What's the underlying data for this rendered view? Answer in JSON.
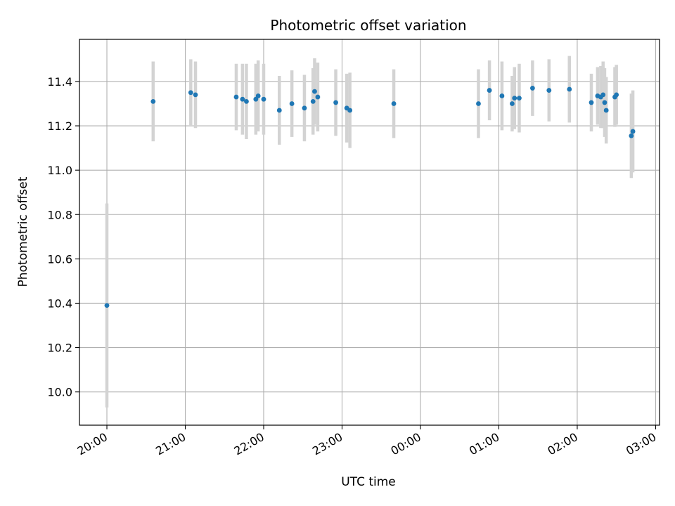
{
  "chart_data": {
    "type": "scatter",
    "title": "Photometric offset variation",
    "xlabel": "UTC time",
    "ylabel": "Photometric offset",
    "x_unit": "UTC time (hours from 20:00)",
    "xlim": [
      -0.35,
      7.05
    ],
    "ylim": [
      9.85,
      11.59
    ],
    "x_ticks": [
      0,
      1,
      2,
      3,
      4,
      5,
      6,
      7
    ],
    "x_tick_labels": [
      "20:00",
      "21:00",
      "22:00",
      "23:00",
      "00:00",
      "01:00",
      "02:00",
      "03:00"
    ],
    "y_ticks": [
      10.0,
      10.2,
      10.4,
      10.6,
      10.8,
      11.0,
      11.2,
      11.4
    ],
    "y_tick_labels": [
      "10.0",
      "10.2",
      "10.4",
      "10.6",
      "10.8",
      "11.0",
      "11.2",
      "11.4"
    ],
    "grid": true,
    "colors": {
      "point": "#1f77b4",
      "errorbar": "#d3d3d3",
      "grid": "#b0b0b0"
    },
    "points": [
      {
        "x": 0.0,
        "y": 10.39,
        "err": 0.46
      },
      {
        "x": 0.59,
        "y": 11.31,
        "err": 0.18
      },
      {
        "x": 1.07,
        "y": 11.35,
        "err": 0.15
      },
      {
        "x": 1.13,
        "y": 11.34,
        "err": 0.15
      },
      {
        "x": 1.65,
        "y": 11.33,
        "err": 0.15
      },
      {
        "x": 1.73,
        "y": 11.32,
        "err": 0.16
      },
      {
        "x": 1.78,
        "y": 11.31,
        "err": 0.17
      },
      {
        "x": 1.9,
        "y": 11.32,
        "err": 0.16
      },
      {
        "x": 1.93,
        "y": 11.335,
        "err": 0.16
      },
      {
        "x": 2.0,
        "y": 11.32,
        "err": 0.16
      },
      {
        "x": 2.2,
        "y": 11.27,
        "err": 0.155
      },
      {
        "x": 2.36,
        "y": 11.3,
        "err": 0.15
      },
      {
        "x": 2.52,
        "y": 11.28,
        "err": 0.15
      },
      {
        "x": 2.63,
        "y": 11.31,
        "err": 0.15
      },
      {
        "x": 2.65,
        "y": 11.355,
        "err": 0.15
      },
      {
        "x": 2.69,
        "y": 11.33,
        "err": 0.155
      },
      {
        "x": 2.92,
        "y": 11.305,
        "err": 0.15
      },
      {
        "x": 3.06,
        "y": 11.28,
        "err": 0.155
      },
      {
        "x": 3.1,
        "y": 11.27,
        "err": 0.17
      },
      {
        "x": 3.66,
        "y": 11.3,
        "err": 0.155
      },
      {
        "x": 4.74,
        "y": 11.3,
        "err": 0.155
      },
      {
        "x": 4.88,
        "y": 11.36,
        "err": 0.135
      },
      {
        "x": 5.04,
        "y": 11.335,
        "err": 0.155
      },
      {
        "x": 5.17,
        "y": 11.3,
        "err": 0.125
      },
      {
        "x": 5.2,
        "y": 11.325,
        "err": 0.14
      },
      {
        "x": 5.26,
        "y": 11.325,
        "err": 0.155
      },
      {
        "x": 5.43,
        "y": 11.37,
        "err": 0.125
      },
      {
        "x": 5.64,
        "y": 11.36,
        "err": 0.14
      },
      {
        "x": 5.9,
        "y": 11.365,
        "err": 0.15
      },
      {
        "x": 6.18,
        "y": 11.305,
        "err": 0.13
      },
      {
        "x": 6.26,
        "y": 11.335,
        "err": 0.13
      },
      {
        "x": 6.3,
        "y": 11.33,
        "err": 0.14
      },
      {
        "x": 6.33,
        "y": 11.34,
        "err": 0.15
      },
      {
        "x": 6.35,
        "y": 11.305,
        "err": 0.155
      },
      {
        "x": 6.37,
        "y": 11.27,
        "err": 0.15
      },
      {
        "x": 6.48,
        "y": 11.33,
        "err": 0.135
      },
      {
        "x": 6.5,
        "y": 11.34,
        "err": 0.135
      },
      {
        "x": 6.69,
        "y": 11.155,
        "err": 0.19
      },
      {
        "x": 6.71,
        "y": 11.175,
        "err": 0.185
      }
    ]
  }
}
